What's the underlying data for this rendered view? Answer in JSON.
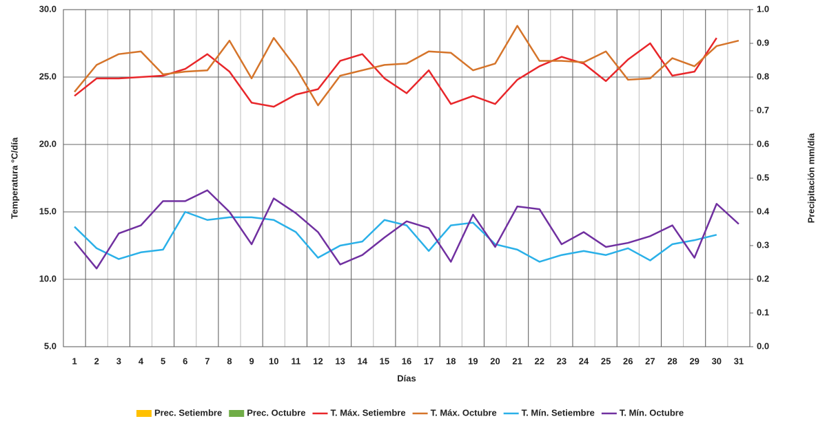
{
  "chart_data": {
    "type": "line",
    "xlabel": "Días",
    "ylabel": "Temperatura °C/día",
    "y2label": "Precipitación mm/día",
    "categories": [
      "1",
      "2",
      "3",
      "4",
      "5",
      "6",
      "7",
      "8",
      "9",
      "10",
      "11",
      "12",
      "13",
      "14",
      "15",
      "16",
      "17",
      "18",
      "19",
      "20",
      "21",
      "22",
      "23",
      "24",
      "25",
      "26",
      "27",
      "28",
      "29",
      "30",
      "31"
    ],
    "ylim": [
      5,
      30
    ],
    "yticks": [
      {
        "value": 5,
        "label": "5.0"
      },
      {
        "value": 10,
        "label": "10.0"
      },
      {
        "value": 15,
        "label": "15.0"
      },
      {
        "value": 20,
        "label": "20.0"
      },
      {
        "value": 25,
        "label": "25.0"
      },
      {
        "value": 30,
        "label": "30.0"
      }
    ],
    "y2lim": [
      0,
      1
    ],
    "y2ticks": [
      {
        "value": 0,
        "label": "0.0"
      },
      0.1,
      0.2,
      0.3,
      0.4,
      0.5,
      0.6,
      0.7,
      0.8,
      0.9,
      {
        "value": 1,
        "label": "1.0"
      }
    ],
    "grid": true,
    "legend": "bottom",
    "series": [
      {
        "name": "Prec. Setiembre",
        "type": "bar",
        "axis": "y2",
        "color": "#ffc000",
        "values": [
          0,
          0,
          0,
          0,
          0,
          0,
          0,
          0,
          0,
          0,
          0,
          0,
          0,
          0,
          0,
          0,
          0,
          0,
          0,
          0,
          0,
          0,
          0,
          0,
          0,
          0,
          0,
          0,
          0,
          0,
          null
        ]
      },
      {
        "name": "Prec. Octubre",
        "type": "bar",
        "axis": "y2",
        "color": "#70ad47",
        "values": [
          0,
          0,
          0,
          0,
          0,
          0,
          0,
          0,
          0,
          0,
          0,
          0,
          0,
          0,
          0,
          0,
          0,
          0,
          0,
          0,
          0,
          0,
          0,
          0,
          0,
          0,
          0,
          0,
          0,
          0,
          0
        ]
      },
      {
        "name": "T. Máx. Setiembre",
        "type": "line",
        "color": "#e8262a",
        "values": [
          23.6,
          24.9,
          24.9,
          25.0,
          25.1,
          25.6,
          26.7,
          25.4,
          23.1,
          22.8,
          23.7,
          24.1,
          26.2,
          26.7,
          24.9,
          23.8,
          25.5,
          23.0,
          23.6,
          23.0,
          24.8,
          25.8,
          26.5,
          26.0,
          24.7,
          26.3,
          27.5,
          25.1,
          25.4,
          27.9,
          null
        ]
      },
      {
        "name": "T. Máx. Octubre",
        "type": "line",
        "color": "#d5742a",
        "values": [
          23.9,
          25.9,
          26.7,
          26.9,
          25.2,
          25.4,
          25.5,
          27.7,
          24.9,
          27.9,
          25.7,
          22.9,
          25.1,
          25.5,
          25.9,
          26.0,
          26.9,
          26.8,
          25.5,
          26.0,
          28.8,
          26.2,
          26.2,
          26.1,
          26.9,
          24.8,
          24.9,
          26.4,
          25.8,
          27.3,
          27.7
        ]
      },
      {
        "name": "T. Mín. Setiembre",
        "type": "line",
        "color": "#2ab0e8",
        "values": [
          13.9,
          12.3,
          11.5,
          12.0,
          12.2,
          15.0,
          14.4,
          14.6,
          14.6,
          14.4,
          13.5,
          11.6,
          12.5,
          12.8,
          14.4,
          14.0,
          12.1,
          14.0,
          14.2,
          12.6,
          12.2,
          11.3,
          11.8,
          12.1,
          11.8,
          12.3,
          11.4,
          12.6,
          12.9,
          13.3,
          null
        ]
      },
      {
        "name": "T. Mín. Octubre",
        "type": "line",
        "color": "#7030a0",
        "values": [
          12.8,
          10.8,
          13.4,
          14.0,
          15.8,
          15.8,
          16.6,
          15.0,
          12.6,
          16.0,
          14.9,
          13.5,
          11.1,
          11.8,
          13.1,
          14.3,
          13.8,
          11.3,
          14.8,
          12.4,
          15.4,
          15.2,
          12.6,
          13.5,
          12.4,
          12.7,
          13.2,
          14.0,
          11.6,
          15.6,
          14.1
        ]
      }
    ]
  }
}
